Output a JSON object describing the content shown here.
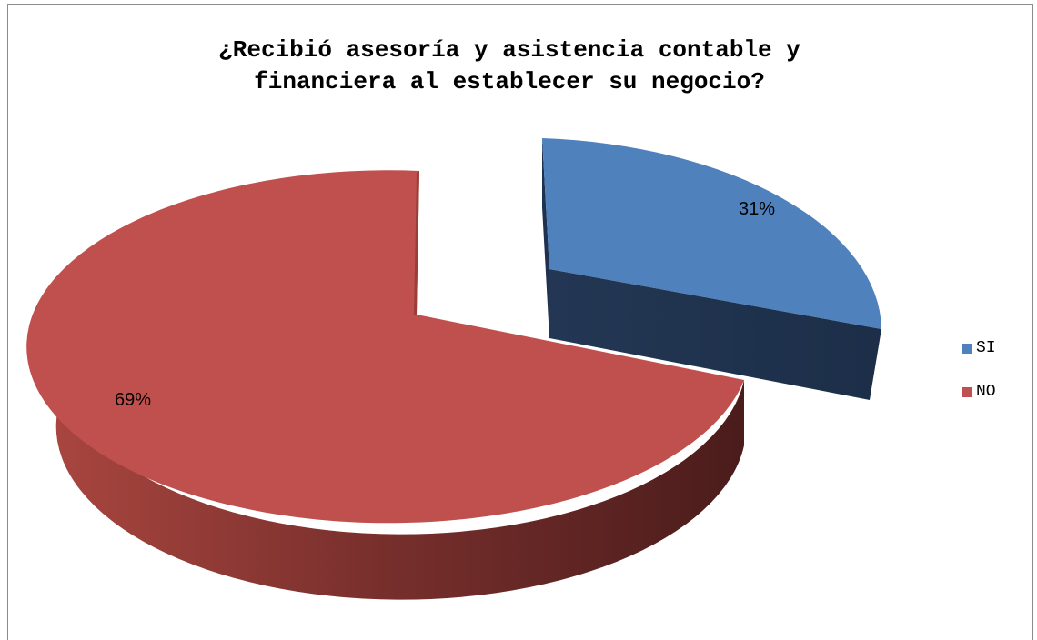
{
  "chart_data": {
    "type": "pie",
    "title_lines": [
      "¿Recibió asesoría y asistencia contable y",
      "financiera al establecer su negocio?"
    ],
    "categories": [
      "SI",
      "NO"
    ],
    "values": [
      31,
      69
    ],
    "data_labels": [
      "31%",
      "69%"
    ],
    "colors": [
      "#4f81bd",
      "#c0504d"
    ],
    "legend_position": "right",
    "style": "3d-exploded"
  }
}
